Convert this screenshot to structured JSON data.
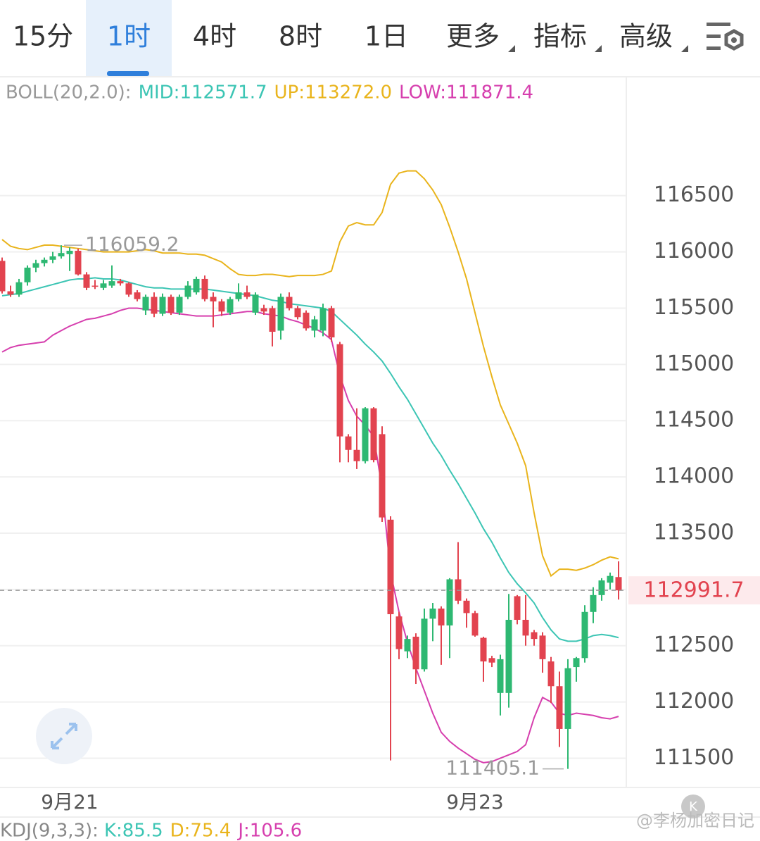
{
  "tabs": [
    "15分",
    "1时",
    "4时",
    "8时",
    "1日",
    "更多",
    "指标",
    "高级"
  ],
  "selected_tab": 1,
  "watermark": "@李杨加密日记",
  "badge": "K",
  "chart_data": {
    "type": "candlestick",
    "up_color": "#2eb872",
    "down_color": "#e2434f",
    "ylim": [
      111240,
      117550
    ],
    "yticks": [
      111500,
      112000,
      112500,
      113000,
      113500,
      114000,
      114500,
      115000,
      115500,
      116000,
      116500
    ],
    "yticks_labeled": [
      111500,
      112000,
      112500,
      113500,
      114000,
      114500,
      115000,
      115500,
      116000,
      116500
    ],
    "grid": true,
    "categories": [
      null,
      null,
      null,
      null,
      null,
      null,
      null,
      null,
      "9月21",
      null,
      null,
      null,
      null,
      null,
      null,
      null,
      null,
      null,
      null,
      null,
      null,
      null,
      null,
      null,
      null,
      null,
      null,
      null,
      null,
      null,
      null,
      null,
      null,
      null,
      null,
      null,
      null,
      null,
      null,
      null,
      null,
      null,
      null,
      null,
      null,
      null,
      null,
      null,
      null,
      null,
      null,
      null,
      null,
      null,
      null,
      null,
      "9月23",
      null,
      null,
      null,
      null,
      null,
      null,
      null,
      null,
      null,
      null,
      null,
      null,
      null,
      null,
      null,
      null,
      null
    ],
    "open": [
      115920,
      115650,
      115620,
      115730,
      115860,
      115900,
      115930,
      115960,
      115980,
      116010,
      115800,
      115700,
      115680,
      115700,
      115740,
      115720,
      115640,
      115480,
      115600,
      115450,
      115600,
      115460,
      115600,
      115640,
      115760,
      115600,
      115560,
      115460,
      115580,
      115640,
      115460,
      115500,
      115500,
      115300,
      115600,
      115500,
      115460,
      115300,
      115300,
      115500,
      115180,
      114360,
      114240,
      114140,
      114610,
      114380,
      113620,
      112760,
      112450,
      112580,
      112290,
      112740,
      112830,
      112680,
      113090,
      112900,
      112790,
      112570,
      112390,
      112080,
      112080,
      112940,
      112730,
      112620,
      112590,
      112360,
      112140,
      111760,
      112310,
      112390,
      112800,
      112950,
      113060,
      113110
    ],
    "high": [
      115950,
      115700,
      115760,
      115880,
      115930,
      115950,
      116000,
      116059.2,
      116040,
      116030,
      115820,
      115750,
      115750,
      115880,
      115760,
      115730,
      115660,
      115620,
      115640,
      115630,
      115620,
      115620,
      115740,
      115780,
      115790,
      115640,
      115580,
      115600,
      115720,
      115700,
      115640,
      115530,
      115520,
      115630,
      115640,
      115520,
      115480,
      115430,
      115540,
      115520,
      115200,
      114380,
      114610,
      114620,
      114620,
      114450,
      113650,
      112800,
      112590,
      112610,
      112830,
      112880,
      112850,
      113100,
      113420,
      112920,
      112810,
      112580,
      112410,
      112420,
      112960,
      112950,
      112950,
      112640,
      112620,
      112400,
      112270,
      112380,
      112400,
      112860,
      113020,
      113100,
      113150,
      113250
    ],
    "low": [
      115630,
      115600,
      115600,
      115700,
      115820,
      115870,
      115900,
      115940,
      115830,
      115790,
      115660,
      115670,
      115660,
      115680,
      115700,
      115600,
      115560,
      115440,
      115420,
      115430,
      115440,
      115440,
      115580,
      115620,
      115560,
      115330,
      115430,
      115440,
      115560,
      115580,
      115440,
      115440,
      115160,
      115220,
      115480,
      115400,
      115300,
      115240,
      115250,
      115200,
      114130,
      114130,
      114070,
      114120,
      114130,
      113600,
      111480,
      112380,
      112390,
      112160,
      112270,
      112540,
      112330,
      112390,
      112870,
      112660,
      112580,
      112180,
      112310,
      111880,
      111950,
      112690,
      112500,
      112500,
      112260,
      111990,
      111600,
      111405.1,
      112180,
      112350,
      112700,
      112900,
      113000,
      112910
    ],
    "close": [
      115650,
      115620,
      115730,
      115860,
      115900,
      115930,
      115960,
      115990,
      116010,
      115800,
      115680,
      115690,
      115720,
      115740,
      115720,
      115620,
      115580,
      115600,
      115450,
      115600,
      115460,
      115600,
      115700,
      115760,
      115580,
      115560,
      115470,
      115580,
      115640,
      115600,
      115620,
      115470,
      115290,
      115600,
      115500,
      115420,
      115320,
      115400,
      115500,
      115240,
      114360,
      114240,
      114140,
      114610,
      114150,
      113640,
      112780,
      112470,
      112560,
      112290,
      112740,
      112830,
      112680,
      113090,
      112900,
      112790,
      112590,
      112360,
      112350,
      112380,
      112730,
      112730,
      112590,
      112560,
      112380,
      112140,
      111760,
      112300,
      112390,
      112800,
      112950,
      113080,
      113120,
      112991.7
    ],
    "high_index": 7,
    "low_index": 67,
    "indicator_label": "BOLL(20,2.0):",
    "series": [
      {
        "name": "MID",
        "legend": "MID:112571.7",
        "color": "#3cc5b4",
        "values": [
          115610,
          115620,
          115630,
          115650,
          115670,
          115690,
          115710,
          115730,
          115750,
          115760,
          115760,
          115770,
          115760,
          115760,
          115750,
          115730,
          115710,
          115690,
          115680,
          115680,
          115670,
          115670,
          115670,
          115670,
          115670,
          115660,
          115650,
          115640,
          115630,
          115620,
          115610,
          115590,
          115570,
          115560,
          115540,
          115530,
          115520,
          115510,
          115500,
          115470,
          115400,
          115330,
          115260,
          115180,
          115110,
          115030,
          114920,
          114800,
          114690,
          114560,
          114430,
          114300,
          114190,
          114060,
          113940,
          113810,
          113680,
          113540,
          113420,
          113280,
          113150,
          113050,
          112970,
          112880,
          112750,
          112640,
          112560,
          112540,
          112540,
          112560,
          112590,
          112600,
          112590,
          112571.7
        ]
      },
      {
        "name": "UP",
        "legend": "UP:113272.0",
        "color": "#e9b41c",
        "values": [
          116110,
          116050,
          116030,
          116020,
          116040,
          116060,
          116060,
          116050,
          116040,
          116030,
          116020,
          116010,
          116000,
          116000,
          116000,
          116000,
          116010,
          116020,
          116010,
          115990,
          115990,
          115990,
          115980,
          115980,
          115970,
          115940,
          115910,
          115850,
          115800,
          115790,
          115790,
          115800,
          115800,
          115790,
          115780,
          115790,
          115790,
          115790,
          115800,
          115830,
          116090,
          116230,
          116260,
          116240,
          116240,
          116350,
          116600,
          116700,
          116720,
          116720,
          116650,
          116550,
          116420,
          116220,
          116000,
          115760,
          115460,
          115160,
          114890,
          114640,
          114470,
          114300,
          114100,
          113680,
          113300,
          113120,
          113180,
          113180,
          113170,
          113190,
          113220,
          113260,
          113290,
          113272.0
        ]
      },
      {
        "name": "LOW",
        "legend": "LOW:111871.4",
        "color": "#d63fae",
        "values": [
          115110,
          115150,
          115170,
          115180,
          115190,
          115200,
          115260,
          115300,
          115340,
          115370,
          115400,
          115410,
          115430,
          115450,
          115480,
          115500,
          115500,
          115490,
          115480,
          115470,
          115460,
          115450,
          115440,
          115430,
          115430,
          115430,
          115440,
          115450,
          115460,
          115470,
          115470,
          115450,
          115440,
          115430,
          115400,
          115380,
          115350,
          115320,
          115280,
          115220,
          114900,
          114680,
          114540,
          114460,
          114360,
          113900,
          113150,
          112800,
          112530,
          112300,
          112100,
          111900,
          111730,
          111650,
          111590,
          111540,
          111490,
          111460,
          111470,
          111500,
          111530,
          111560,
          111620,
          111860,
          112040,
          112000,
          111900,
          111880,
          111900,
          111890,
          111880,
          111860,
          111850,
          111871.4
        ]
      }
    ],
    "kdj_label": "KDJ(9,3,3):",
    "kdj": [
      {
        "text": "K:85.5",
        "color": "#3cc5b4"
      },
      {
        "text": "D:75.4",
        "color": "#e9b41c"
      },
      {
        "text": "J:105.6",
        "color": "#d63fae"
      }
    ]
  }
}
